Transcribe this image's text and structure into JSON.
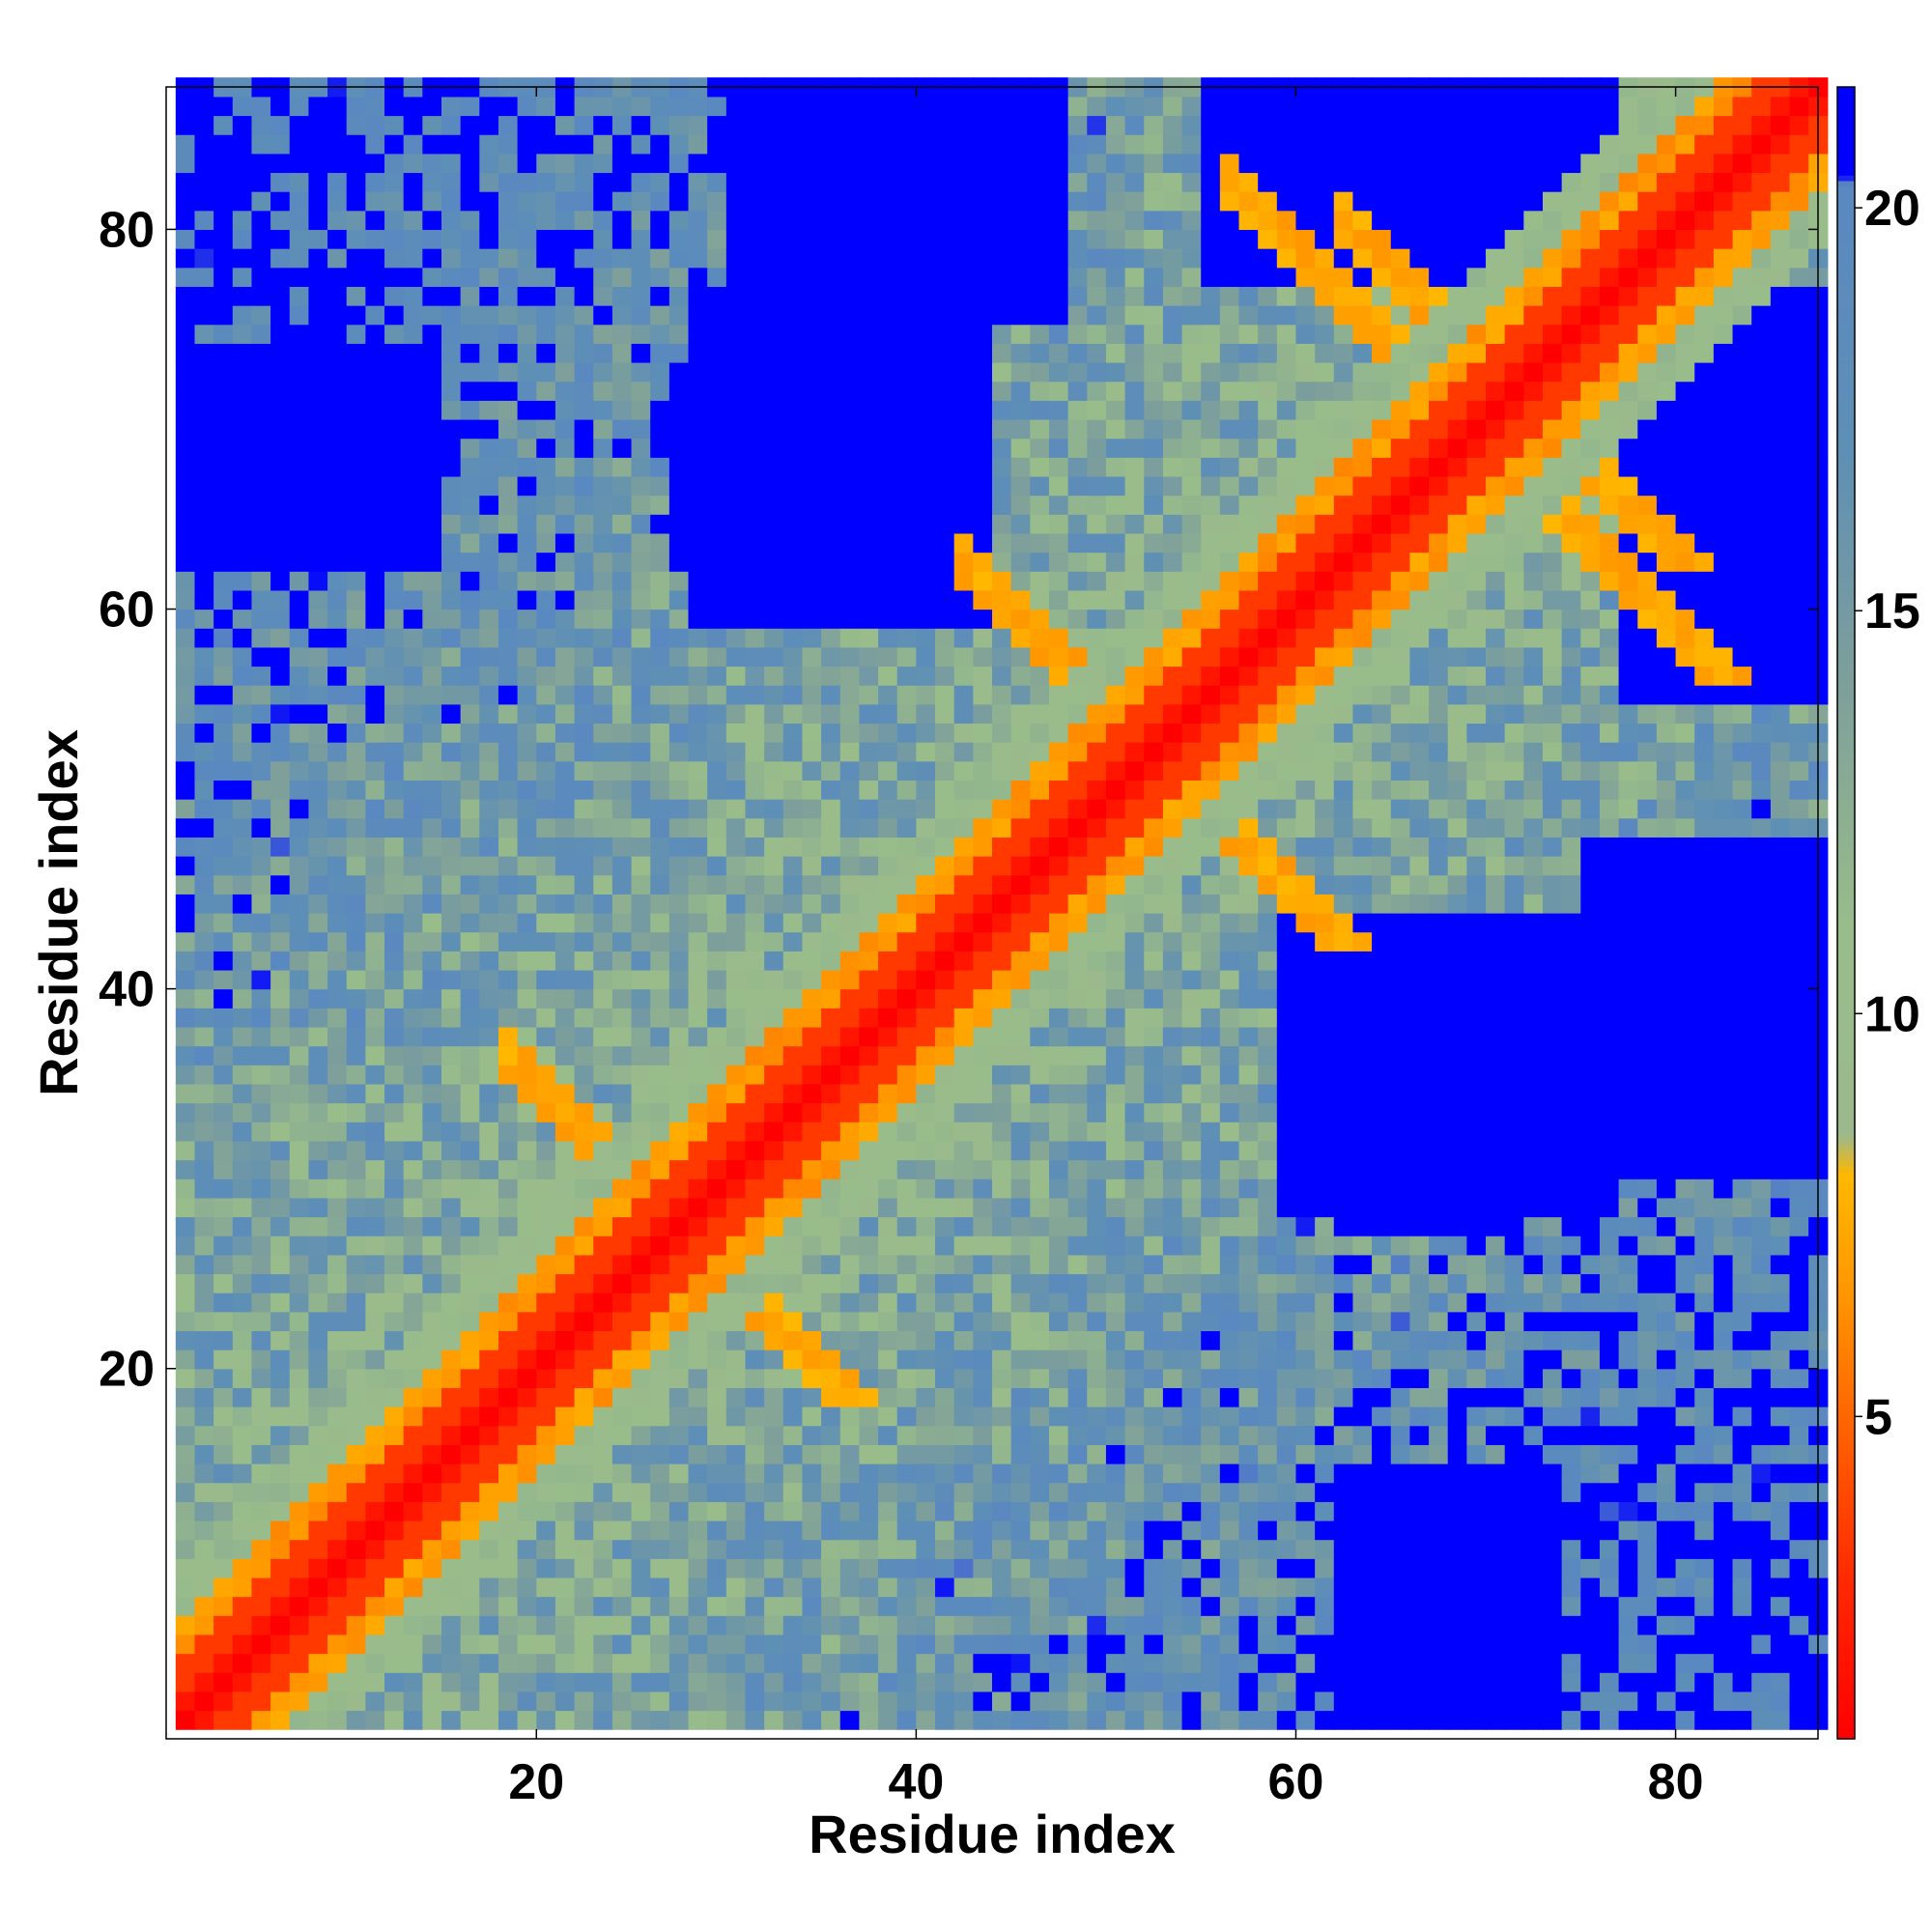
{
  "chart_data": {
    "type": "heatmap",
    "description": "Residue-residue distance map",
    "n": 87,
    "xlabel": "Residue index",
    "ylabel": "Residue index",
    "xticks": [
      20,
      40,
      60,
      80
    ],
    "yticks": [
      20,
      40,
      60,
      80
    ],
    "colorbar": {
      "ticks": [
        5,
        10,
        15,
        20
      ],
      "range": [
        1,
        21.5
      ],
      "stops": [
        {
          "value": 1,
          "color": "#ff0000"
        },
        {
          "value": 3,
          "color": "#ff2a00"
        },
        {
          "value": 5,
          "color": "#ff6600"
        },
        {
          "value": 6.5,
          "color": "#ff9500"
        },
        {
          "value": 8,
          "color": "#ffb800"
        },
        {
          "value": 8.5,
          "color": "#9bb98c"
        },
        {
          "value": 11,
          "color": "#99bd8a"
        },
        {
          "value": 14,
          "color": "#7fa09a"
        },
        {
          "value": 17,
          "color": "#5e8fb5"
        },
        {
          "value": 20.3,
          "color": "#5a88c1"
        },
        {
          "value": 20.4,
          "color": "#0000ff"
        },
        {
          "value": 21.5,
          "color": "#0000ff"
        }
      ]
    },
    "colors": {
      "far": "#0000ff",
      "mid_blue": "#5a88c1",
      "steel": "#6f92ad",
      "sage": "#9bba8c",
      "light_sage": "#a5bf8c",
      "orange": "#ff8c00",
      "amber": "#ffb000",
      "red": "#ff0000"
    },
    "structure": {
      "helix_diagonal_band": "residues 1-87 main diagonal (distance < 4)",
      "close_band": "|i-j| 2-4 (distance 5-8)",
      "hairpin_contacts": [
        [
          62,
          76
        ],
        [
          68,
          74
        ]
      ],
      "far_regions": [
        {
          "x": [
            27,
            43
          ],
          "y": [
            62,
            71
          ]
        },
        {
          "x": [
            1,
            12
          ],
          "y": [
            62,
            71
          ]
        },
        {
          "x": [
            77,
            87
          ],
          "y": [
            62,
            71
          ]
        },
        {
          "x": [
            59,
            76
          ],
          "y": [
            28,
            43
          ]
        },
        {
          "x": [
            62,
            73
          ],
          "y": [
            1,
            14
          ]
        },
        {
          "x": [
            55,
            76
          ],
          "y": [
            77,
            87
          ]
        },
        {
          "x": [
            30,
            47
          ],
          "y": [
            75,
            87
          ]
        }
      ]
    }
  }
}
